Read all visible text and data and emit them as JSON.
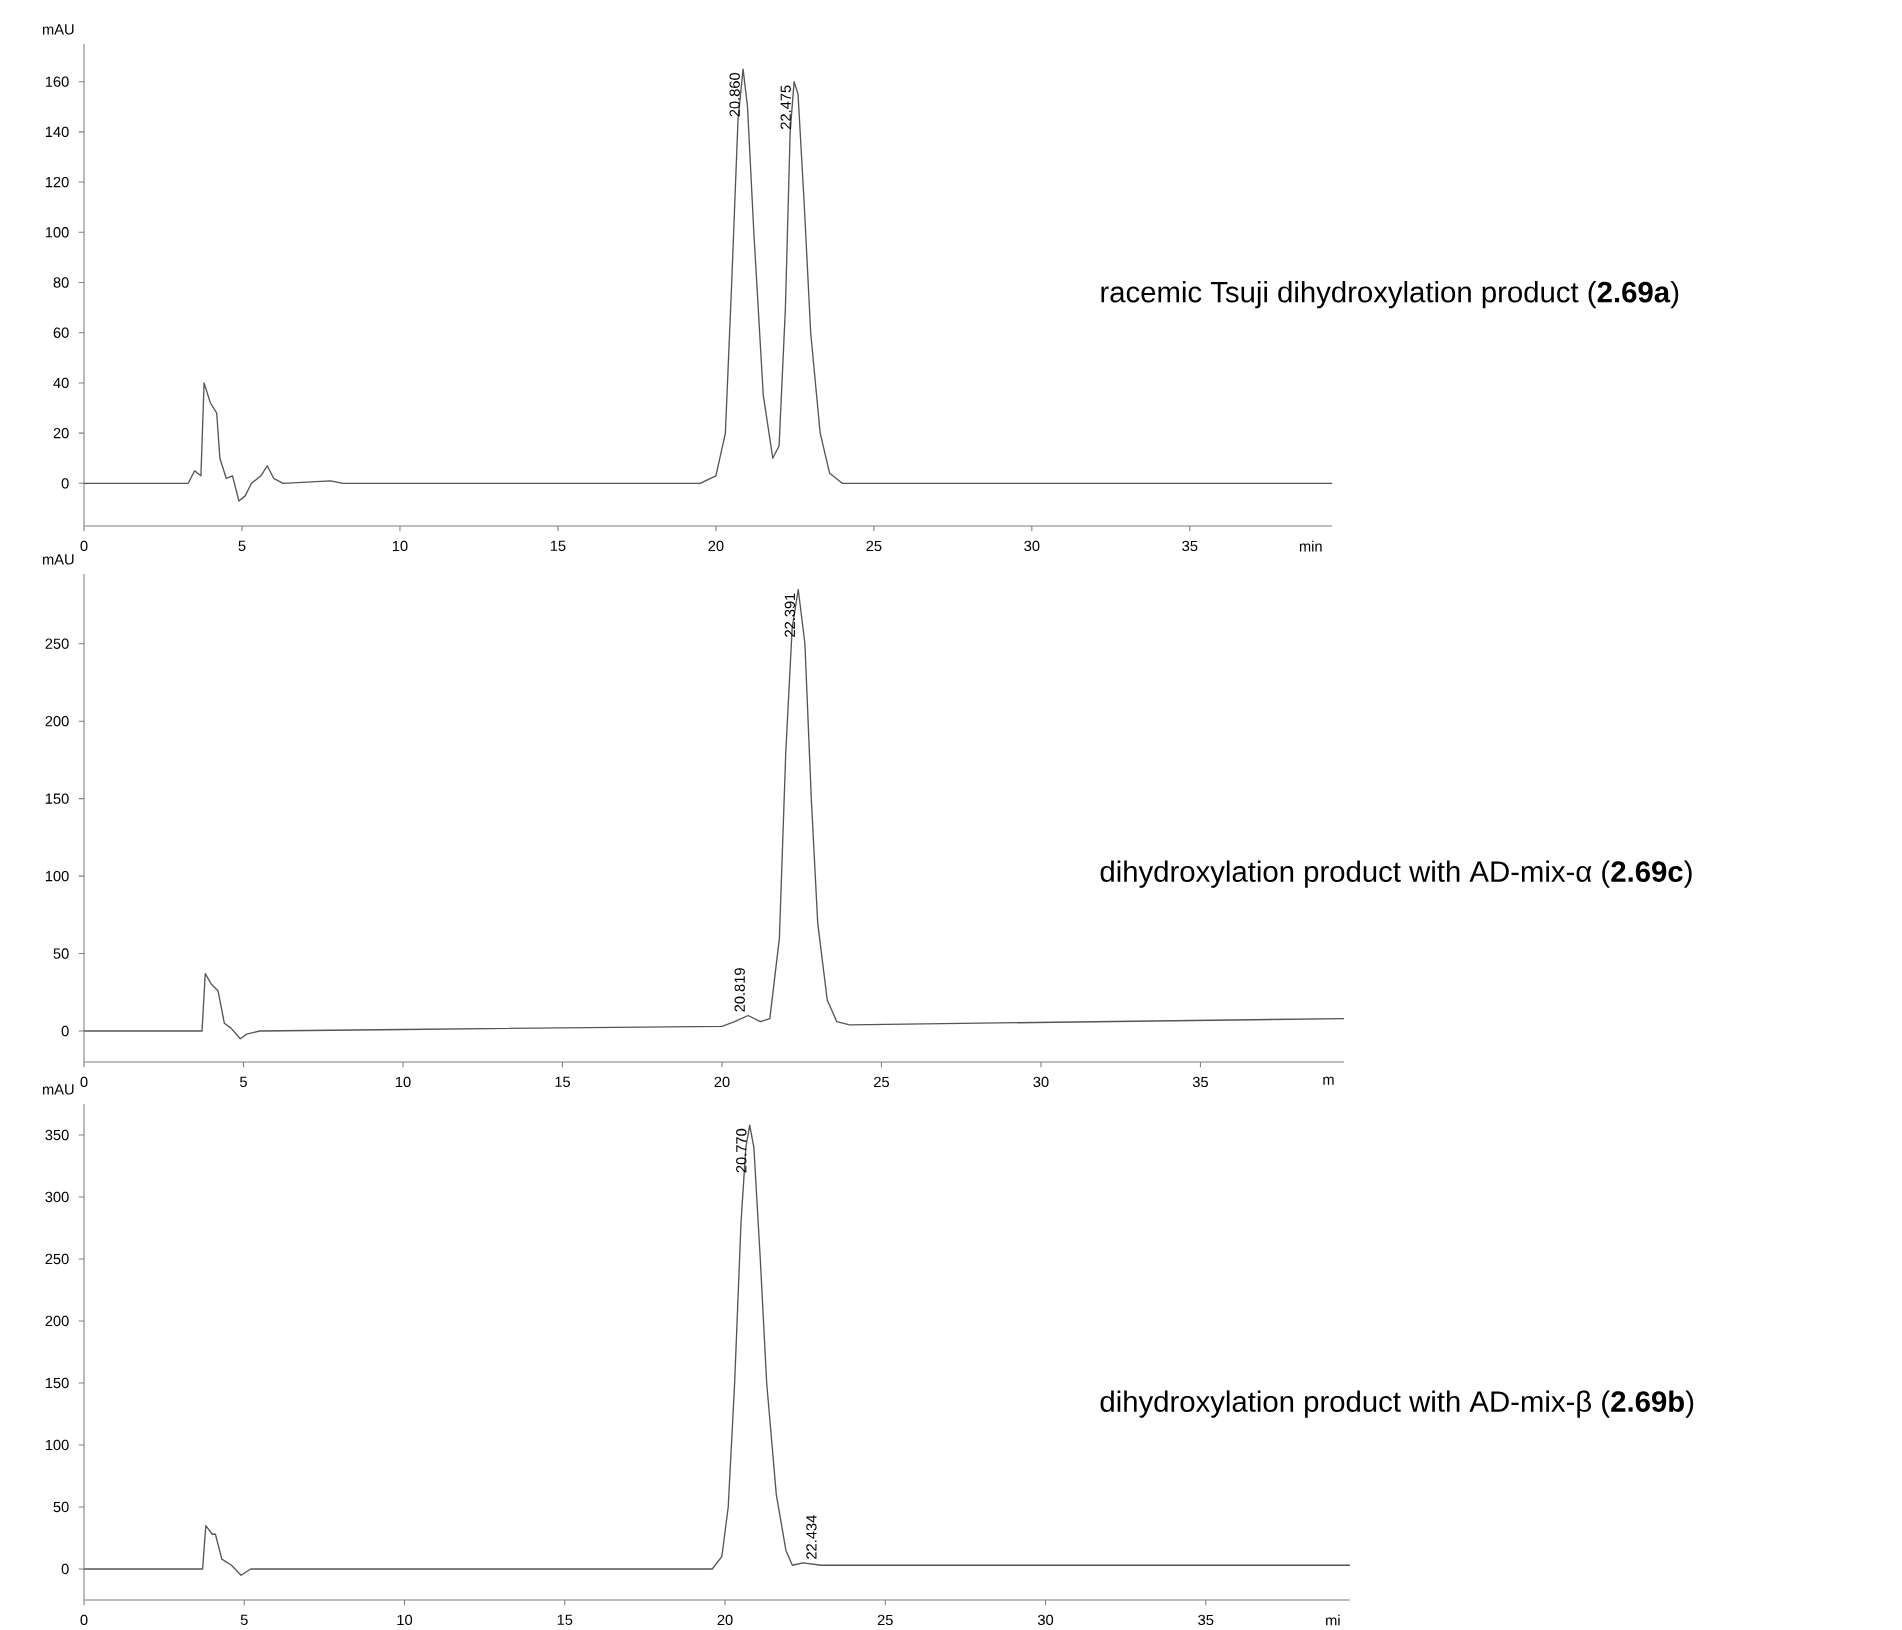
{
  "chart_data": [
    {
      "type": "line",
      "title": "racemic Tsuji dihydroxylation product (**2.69a**)",
      "xlabel": "min",
      "ylabel": "mAU",
      "color": "#555555",
      "xlim": [
        0,
        39.5
      ],
      "ylim": [
        -17,
        175
      ],
      "xticks": [
        0,
        5,
        10,
        15,
        20,
        25,
        30,
        35
      ],
      "yticks": [
        0,
        20,
        40,
        60,
        80,
        100,
        120,
        140,
        160
      ],
      "x": [
        0,
        3.3,
        3.5,
        3.7,
        3.8,
        4.0,
        4.2,
        4.3,
        4.5,
        4.7,
        4.9,
        5.1,
        5.3,
        5.6,
        5.8,
        6.0,
        6.3,
        7.8,
        8.2,
        19.5,
        20.0,
        20.3,
        20.5,
        20.7,
        20.86,
        21.0,
        21.2,
        21.5,
        21.8,
        22.0,
        22.2,
        22.35,
        22.475,
        22.6,
        22.8,
        23.0,
        23.3,
        23.6,
        24.0,
        39.5
      ],
      "values": [
        0,
        0,
        5,
        3,
        40,
        32,
        28,
        10,
        2,
        3,
        -7,
        -5,
        0,
        3,
        7,
        2,
        0,
        1,
        0,
        0,
        3,
        20,
        80,
        145,
        165,
        150,
        100,
        35,
        10,
        15,
        70,
        140,
        160,
        155,
        110,
        60,
        20,
        4,
        0,
        0
      ],
      "annotations": [
        {
          "text": "20.860",
          "x": 20.86,
          "y": 165
        },
        {
          "text": "22.475",
          "x": 22.475,
          "y": 160
        }
      ]
    },
    {
      "type": "line",
      "title": "dihydroxylation product with AD-mix-α (**2.69c**)",
      "xlabel": "m",
      "ylabel": "mAU",
      "color": "#555555",
      "xlim": [
        0,
        39.5
      ],
      "ylim": [
        -20,
        295
      ],
      "xticks": [
        0,
        5,
        10,
        15,
        20,
        25,
        30,
        35
      ],
      "yticks": [
        0,
        50,
        100,
        150,
        200,
        250
      ],
      "x": [
        0,
        3.7,
        3.8,
        4.0,
        4.2,
        4.4,
        4.6,
        4.9,
        5.1,
        5.5,
        10,
        20,
        20.4,
        20.819,
        21.2,
        21.5,
        21.8,
        22.0,
        22.2,
        22.391,
        22.6,
        22.8,
        23.0,
        23.3,
        23.6,
        24.0,
        39.5
      ],
      "values": [
        0,
        0,
        37,
        30,
        26,
        5,
        2,
        -5,
        -2,
        0,
        1,
        3,
        6,
        10,
        6,
        8,
        60,
        180,
        260,
        285,
        250,
        150,
        70,
        20,
        6,
        4,
        8
      ],
      "annotations": [
        {
          "text": "20.819",
          "x": 20.819,
          "y": 10
        },
        {
          "text": "22.391",
          "x": 22.391,
          "y": 285
        }
      ]
    },
    {
      "type": "line",
      "title": "dihydroxylation product with AD-mix-β (**2.69b**)",
      "xlabel": "mi",
      "ylabel": "mAU",
      "color": "#555555",
      "xlim": [
        0,
        39.5
      ],
      "ylim": [
        -25,
        375
      ],
      "xticks": [
        0,
        5,
        10,
        15,
        20,
        25,
        30,
        35
      ],
      "yticks": [
        0,
        50,
        100,
        150,
        200,
        250,
        300,
        350
      ],
      "x": [
        0,
        3.7,
        3.8,
        4.0,
        4.1,
        4.3,
        4.6,
        4.9,
        5.2,
        19.6,
        19.9,
        20.1,
        20.3,
        20.5,
        20.65,
        20.77,
        20.9,
        21.1,
        21.3,
        21.6,
        21.9,
        22.1,
        22.434,
        23.0,
        39.5
      ],
      "values": [
        0,
        0,
        35,
        28,
        28,
        8,
        3,
        -5,
        0,
        0,
        10,
        50,
        150,
        280,
        340,
        358,
        340,
        250,
        150,
        60,
        15,
        3,
        5,
        3,
        3
      ],
      "annotations": [
        {
          "text": "20.770",
          "x": 20.77,
          "y": 358
        },
        {
          "text": "22.434",
          "x": 22.434,
          "y": 5
        }
      ]
    }
  ]
}
